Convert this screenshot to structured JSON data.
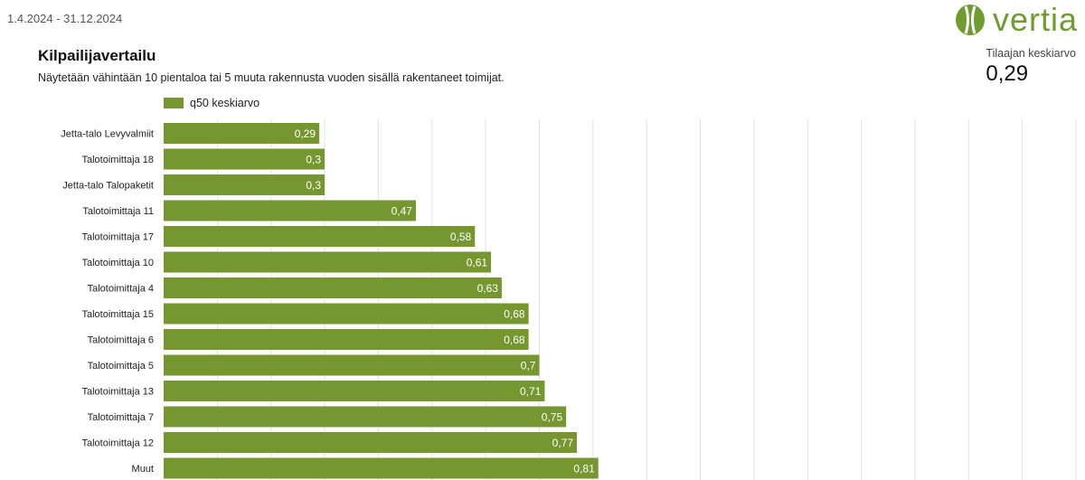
{
  "header": {
    "date_range": "1.4.2024 - 31.12.2024",
    "logo_text": "vertia"
  },
  "title": "Kilpailijavertailu",
  "subtitle": "Näytetään vähintään 10 pientaloa tai 5 muuta rakennusta vuoden sisällä rakentaneet toimijat.",
  "kpi": {
    "label": "Tilaajan keskiarvo",
    "value": "0,29"
  },
  "colors": {
    "bar": "#76962f",
    "logo": "#6f9c2f",
    "grid": "#e2e2e2"
  },
  "chart_data": {
    "type": "bar",
    "orientation": "horizontal",
    "legend": "top-left",
    "grid": true,
    "xlim": [
      0,
      1.7
    ],
    "series": [
      {
        "name": "q50 keskiarvo",
        "values": [
          0.29,
          0.3,
          0.3,
          0.47,
          0.58,
          0.61,
          0.63,
          0.68,
          0.68,
          0.7,
          0.71,
          0.75,
          0.77,
          0.81
        ]
      }
    ],
    "categories": [
      "Jetta-talo Levyvalmiit",
      "Talotoimittaja 18",
      "Jetta-talo Talopaketit",
      "Talotoimittaja 11",
      "Talotoimittaja 17",
      "Talotoimittaja 10",
      "Talotoimittaja 4",
      "Talotoimittaja 15",
      "Talotoimittaja 6",
      "Talotoimittaja 5",
      "Talotoimittaja 13",
      "Talotoimittaja 7",
      "Talotoimittaja 12",
      "Muut"
    ],
    "data_labels": [
      "0,29",
      "0,3",
      "0,3",
      "0,47",
      "0,58",
      "0,61",
      "0,63",
      "0,68",
      "0,68",
      "0,7",
      "0,71",
      "0,75",
      "0,77",
      "0,81"
    ]
  }
}
